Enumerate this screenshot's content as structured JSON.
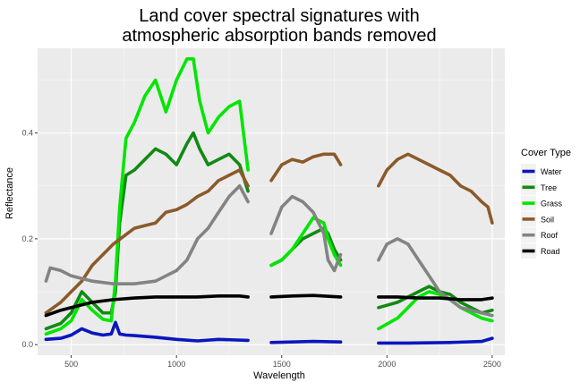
{
  "chart_data": {
    "type": "line",
    "title": "Land cover spectral signatures with\natmospheric absorption bands removed",
    "xlabel": "Wavelength",
    "ylabel": "Reflectance",
    "xlim": [
      340,
      2560
    ],
    "ylim": [
      -0.02,
      0.56
    ],
    "x_ticks": [
      500,
      1000,
      1500,
      2000,
      2500
    ],
    "y_ticks": [
      0.0,
      0.2,
      0.4
    ],
    "y_tick_labels": [
      "0.0",
      "0.2",
      "0.4"
    ],
    "grid": true,
    "background": "#ebebeb",
    "legend": {
      "title": "Cover Type",
      "placement": "right"
    },
    "series": [
      {
        "name": "Water",
        "color": "#0a17bd",
        "segments": [
          [
            [
              380,
              0.01
            ],
            [
              450,
              0.012
            ],
            [
              500,
              0.018
            ],
            [
              550,
              0.03
            ],
            [
              600,
              0.022
            ],
            [
              650,
              0.018
            ],
            [
              690,
              0.02
            ],
            [
              710,
              0.042
            ],
            [
              730,
              0.02
            ],
            [
              760,
              0.018
            ],
            [
              800,
              0.017
            ],
            [
              900,
              0.014
            ],
            [
              1000,
              0.01
            ],
            [
              1100,
              0.007
            ],
            [
              1200,
              0.01
            ],
            [
              1340,
              0.008
            ]
          ],
          [
            [
              1450,
              0.004
            ],
            [
              1550,
              0.005
            ],
            [
              1650,
              0.006
            ],
            [
              1780,
              0.005
            ]
          ],
          [
            [
              1960,
              0.003
            ],
            [
              2100,
              0.003
            ],
            [
              2300,
              0.004
            ],
            [
              2450,
              0.006
            ],
            [
              2500,
              0.012
            ]
          ]
        ]
      },
      {
        "name": "Tree",
        "color": "#128a12",
        "segments": [
          [
            [
              380,
              0.03
            ],
            [
              450,
              0.04
            ],
            [
              500,
              0.06
            ],
            [
              550,
              0.1
            ],
            [
              600,
              0.08
            ],
            [
              650,
              0.06
            ],
            [
              690,
              0.06
            ],
            [
              710,
              0.1
            ],
            [
              730,
              0.23
            ],
            [
              760,
              0.32
            ],
            [
              800,
              0.33
            ],
            [
              850,
              0.35
            ],
            [
              900,
              0.37
            ],
            [
              950,
              0.36
            ],
            [
              1000,
              0.34
            ],
            [
              1050,
              0.38
            ],
            [
              1080,
              0.4
            ],
            [
              1110,
              0.37
            ],
            [
              1150,
              0.34
            ],
            [
              1200,
              0.35
            ],
            [
              1250,
              0.36
            ],
            [
              1300,
              0.34
            ],
            [
              1340,
              0.29
            ]
          ],
          [
            [
              1450,
              0.15
            ],
            [
              1500,
              0.16
            ],
            [
              1550,
              0.18
            ],
            [
              1600,
              0.2
            ],
            [
              1650,
              0.21
            ],
            [
              1700,
              0.22
            ],
            [
              1720,
              0.21
            ],
            [
              1750,
              0.18
            ],
            [
              1780,
              0.16
            ]
          ],
          [
            [
              1960,
              0.07
            ],
            [
              2050,
              0.08
            ],
            [
              2150,
              0.1
            ],
            [
              2200,
              0.11
            ],
            [
              2250,
              0.1
            ],
            [
              2300,
              0.095
            ],
            [
              2350,
              0.08
            ],
            [
              2400,
              0.07
            ],
            [
              2450,
              0.06
            ],
            [
              2500,
              0.065
            ]
          ]
        ]
      },
      {
        "name": "Grass",
        "color": "#00e600",
        "segments": [
          [
            [
              380,
              0.02
            ],
            [
              450,
              0.03
            ],
            [
              500,
              0.045
            ],
            [
              550,
              0.085
            ],
            [
              600,
              0.065
            ],
            [
              650,
              0.048
            ],
            [
              690,
              0.045
            ],
            [
              710,
              0.12
            ],
            [
              730,
              0.26
            ],
            [
              760,
              0.39
            ],
            [
              800,
              0.42
            ],
            [
              850,
              0.47
            ],
            [
              900,
              0.5
            ],
            [
              950,
              0.44
            ],
            [
              1000,
              0.5
            ],
            [
              1050,
              0.54
            ],
            [
              1080,
              0.54
            ],
            [
              1110,
              0.46
            ],
            [
              1150,
              0.4
            ],
            [
              1200,
              0.43
            ],
            [
              1250,
              0.45
            ],
            [
              1300,
              0.46
            ],
            [
              1340,
              0.33
            ]
          ],
          [
            [
              1450,
              0.15
            ],
            [
              1500,
              0.16
            ],
            [
              1550,
              0.18
            ],
            [
              1600,
              0.21
            ],
            [
              1650,
              0.24
            ],
            [
              1700,
              0.23
            ],
            [
              1720,
              0.2
            ],
            [
              1750,
              0.17
            ],
            [
              1780,
              0.15
            ]
          ],
          [
            [
              1960,
              0.03
            ],
            [
              2050,
              0.05
            ],
            [
              2100,
              0.07
            ],
            [
              2150,
              0.09
            ],
            [
              2200,
              0.1
            ],
            [
              2250,
              0.095
            ],
            [
              2300,
              0.085
            ],
            [
              2350,
              0.07
            ],
            [
              2400,
              0.06
            ],
            [
              2450,
              0.05
            ],
            [
              2500,
              0.045
            ]
          ]
        ]
      },
      {
        "name": "Soil",
        "color": "#8b5a2b",
        "segments": [
          [
            [
              380,
              0.06
            ],
            [
              450,
              0.08
            ],
            [
              500,
              0.1
            ],
            [
              550,
              0.12
            ],
            [
              600,
              0.15
            ],
            [
              650,
              0.17
            ],
            [
              700,
              0.19
            ],
            [
              750,
              0.205
            ],
            [
              800,
              0.22
            ],
            [
              850,
              0.225
            ],
            [
              900,
              0.23
            ],
            [
              950,
              0.25
            ],
            [
              1000,
              0.255
            ],
            [
              1050,
              0.265
            ],
            [
              1100,
              0.28
            ],
            [
              1150,
              0.29
            ],
            [
              1200,
              0.31
            ],
            [
              1250,
              0.32
            ],
            [
              1300,
              0.33
            ],
            [
              1340,
              0.3
            ]
          ],
          [
            [
              1450,
              0.31
            ],
            [
              1500,
              0.34
            ],
            [
              1550,
              0.35
            ],
            [
              1600,
              0.345
            ],
            [
              1650,
              0.355
            ],
            [
              1700,
              0.36
            ],
            [
              1750,
              0.36
            ],
            [
              1780,
              0.34
            ]
          ],
          [
            [
              1960,
              0.3
            ],
            [
              2000,
              0.33
            ],
            [
              2050,
              0.35
            ],
            [
              2100,
              0.36
            ],
            [
              2150,
              0.35
            ],
            [
              2200,
              0.34
            ],
            [
              2250,
              0.33
            ],
            [
              2300,
              0.32
            ],
            [
              2350,
              0.3
            ],
            [
              2400,
              0.29
            ],
            [
              2450,
              0.27
            ],
            [
              2480,
              0.26
            ],
            [
              2500,
              0.23
            ]
          ]
        ]
      },
      {
        "name": "Roof",
        "color": "#838383",
        "segments": [
          [
            [
              380,
              0.12
            ],
            [
              400,
              0.145
            ],
            [
              450,
              0.14
            ],
            [
              500,
              0.13
            ],
            [
              550,
              0.125
            ],
            [
              600,
              0.12
            ],
            [
              700,
              0.115
            ],
            [
              800,
              0.115
            ],
            [
              900,
              0.12
            ],
            [
              950,
              0.13
            ],
            [
              1000,
              0.14
            ],
            [
              1050,
              0.16
            ],
            [
              1100,
              0.2
            ],
            [
              1150,
              0.22
            ],
            [
              1200,
              0.25
            ],
            [
              1250,
              0.28
            ],
            [
              1300,
              0.3
            ],
            [
              1340,
              0.27
            ]
          ],
          [
            [
              1450,
              0.21
            ],
            [
              1500,
              0.26
            ],
            [
              1550,
              0.28
            ],
            [
              1600,
              0.27
            ],
            [
              1650,
              0.25
            ],
            [
              1700,
              0.21
            ],
            [
              1720,
              0.16
            ],
            [
              1750,
              0.14
            ],
            [
              1780,
              0.17
            ]
          ],
          [
            [
              1960,
              0.16
            ],
            [
              2000,
              0.19
            ],
            [
              2050,
              0.2
            ],
            [
              2100,
              0.19
            ],
            [
              2150,
              0.16
            ],
            [
              2200,
              0.13
            ],
            [
              2250,
              0.1
            ],
            [
              2300,
              0.085
            ],
            [
              2350,
              0.07
            ],
            [
              2400,
              0.065
            ],
            [
              2450,
              0.06
            ],
            [
              2500,
              0.055
            ]
          ]
        ]
      },
      {
        "name": "Road",
        "color": "#000000",
        "segments": [
          [
            [
              380,
              0.055
            ],
            [
              450,
              0.065
            ],
            [
              500,
              0.07
            ],
            [
              550,
              0.075
            ],
            [
              600,
              0.08
            ],
            [
              700,
              0.085
            ],
            [
              800,
              0.088
            ],
            [
              900,
              0.09
            ],
            [
              1000,
              0.09
            ],
            [
              1100,
              0.09
            ],
            [
              1200,
              0.092
            ],
            [
              1300,
              0.092
            ],
            [
              1340,
              0.09
            ]
          ],
          [
            [
              1450,
              0.09
            ],
            [
              1550,
              0.092
            ],
            [
              1650,
              0.093
            ],
            [
              1780,
              0.09
            ]
          ],
          [
            [
              1960,
              0.09
            ],
            [
              2050,
              0.09
            ],
            [
              2150,
              0.088
            ],
            [
              2250,
              0.088
            ],
            [
              2350,
              0.085
            ],
            [
              2450,
              0.085
            ],
            [
              2500,
              0.088
            ]
          ]
        ]
      }
    ]
  }
}
